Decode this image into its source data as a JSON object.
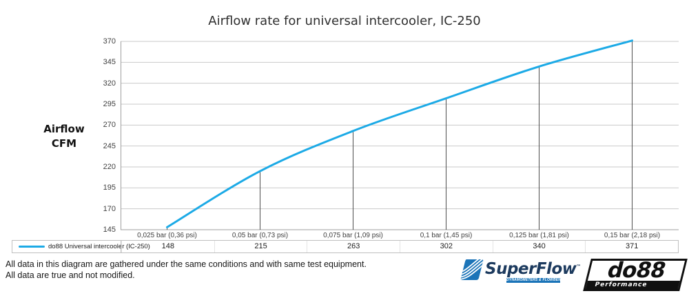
{
  "title": "Airflow rate for universal intercooler, IC-250",
  "y_axis_title": {
    "line1": "Airflow",
    "line2": "CFM"
  },
  "chart_data": {
    "type": "line",
    "title": "Airflow rate for universal intercooler, IC-250",
    "ylabel": "Airflow CFM",
    "xlabel": "",
    "categories": [
      "0,025 bar (0,36 psi)",
      "0,05 bar (0,73 psi)",
      "0,075 bar (1,09 psi)",
      "0,1 bar (1,45 psi)",
      "0,125 bar (1,81 psi)",
      "0,15 bar (2,18 psi)"
    ],
    "series": [
      {
        "name": "do88 Universal intercooler (IC-250)",
        "values": [
          148,
          215,
          263,
          302,
          340,
          371
        ],
        "color": "#1caae6"
      }
    ],
    "yticks": [
      370,
      345,
      320,
      295,
      270,
      245,
      220,
      195,
      170,
      145
    ],
    "ylim": [
      145,
      370
    ],
    "grid": true,
    "droplines": true,
    "legend_position": "bottom-table",
    "smooth": true
  },
  "colors": {
    "line": "#1caae6",
    "grid": "#c9c9c9",
    "axis": "#9d9d9d",
    "dropline": "#4d4d4d"
  },
  "footer": {
    "line1": "All data in this diagram are gathered under the same conditions and with same test equipment.",
    "line2": "All data are true and not modified."
  },
  "logos": {
    "superflow": {
      "name": "SuperFlow",
      "trademark": "™",
      "tagline": "DYNAMOMETERS & FLOWBENCHES",
      "brand_color": "#1b74b8",
      "text_color": "#1c3a5e"
    },
    "do88": {
      "name": "do88",
      "tagline": "Performance",
      "color": "#101010"
    }
  }
}
